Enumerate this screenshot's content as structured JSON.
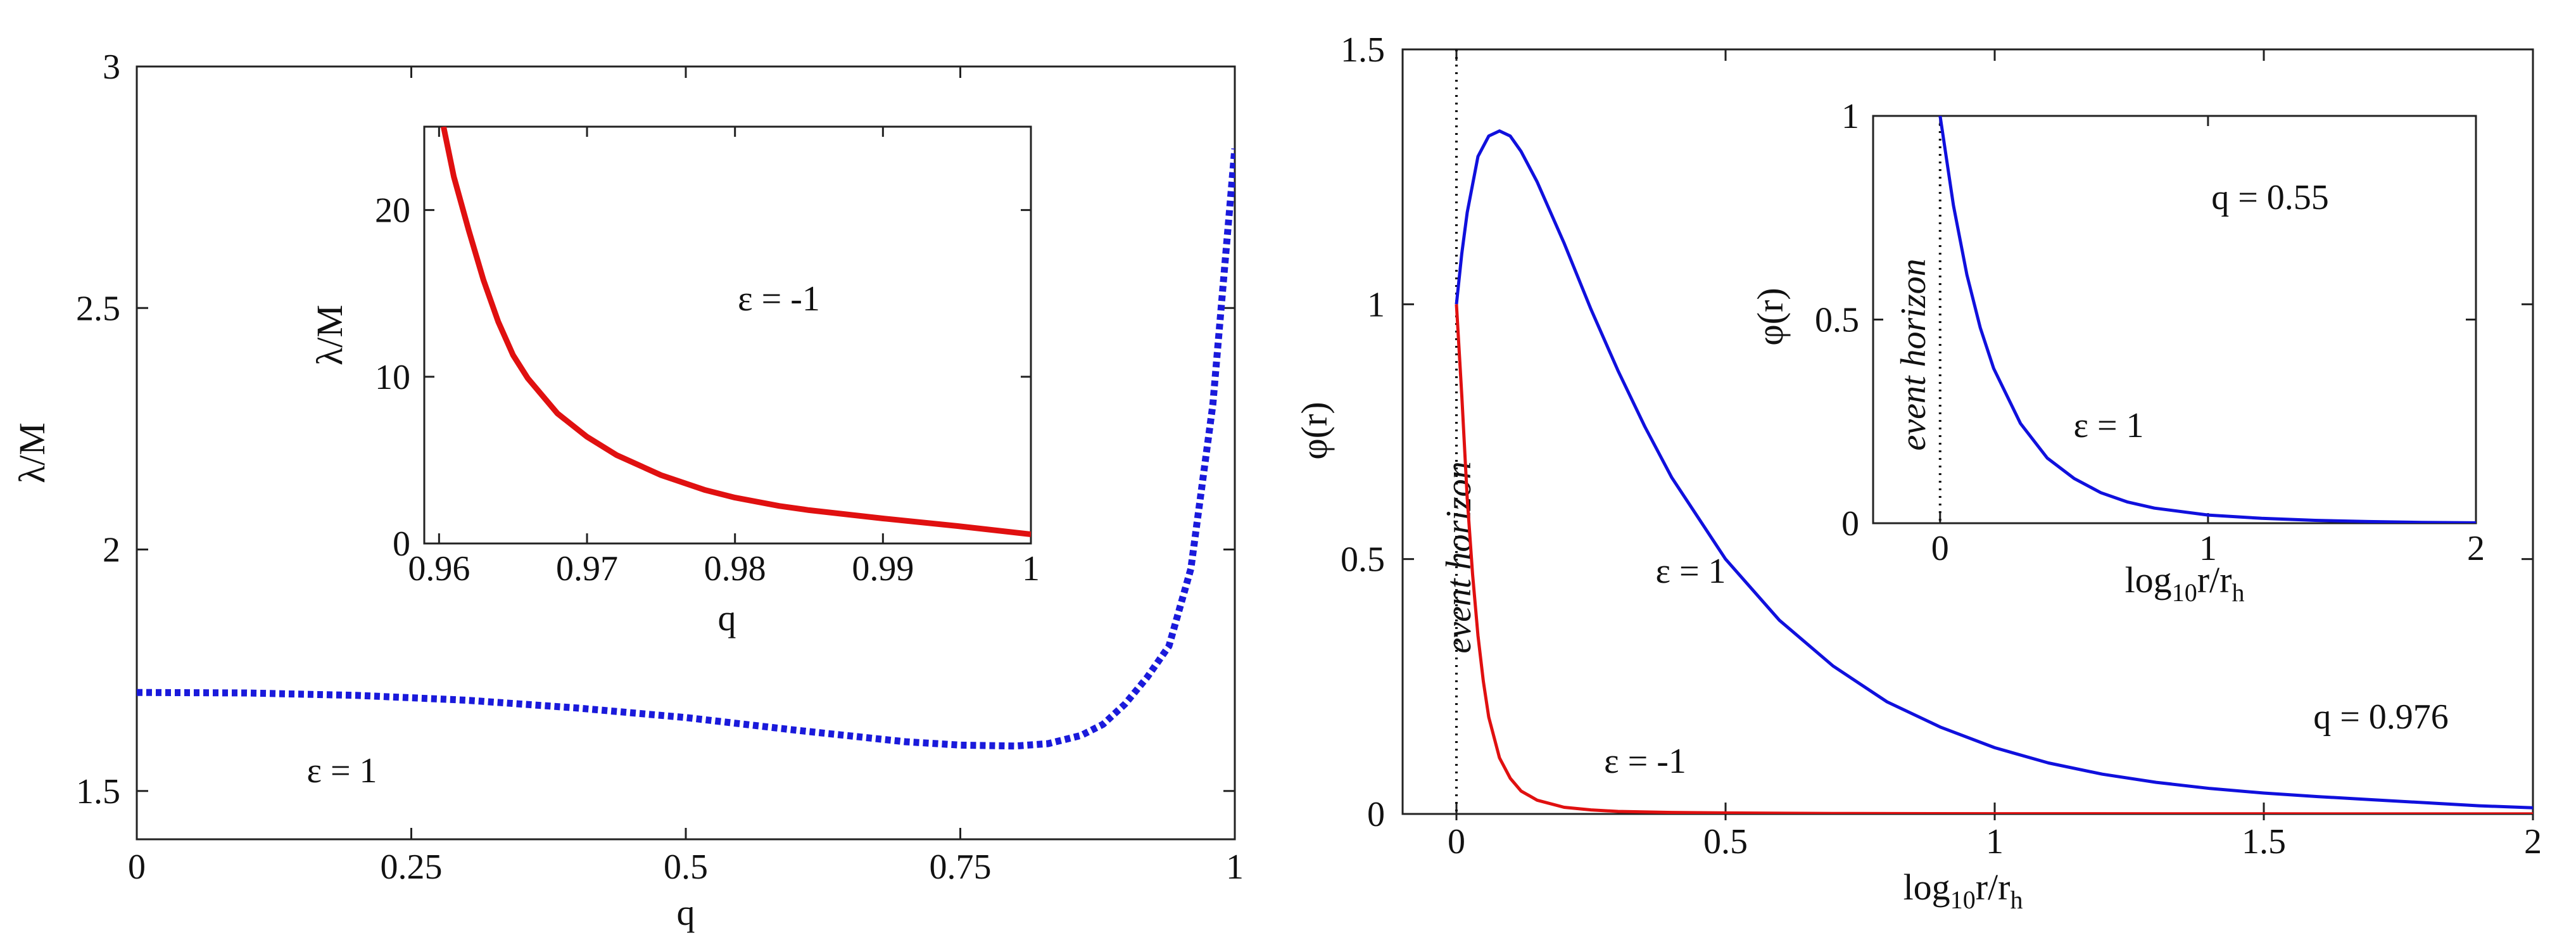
{
  "chart_data": [
    {
      "id": "left_main",
      "type": "line",
      "title": "",
      "xlabel": "q",
      "ylabel": "λ/M",
      "xlim": [
        0,
        1
      ],
      "ylim": [
        1.4,
        3.0
      ],
      "xticks": [
        0,
        0.25,
        0.5,
        0.75,
        1
      ],
      "xtick_labels": [
        "0",
        "0.25",
        "0.5",
        "0.75",
        "1"
      ],
      "yticks": [
        1.5,
        2,
        2.5,
        3
      ],
      "ytick_labels": [
        "1.5",
        "2",
        "2.5",
        "3"
      ],
      "series": [
        {
          "name": "ε = 1",
          "color": "#1a1adb",
          "style": "dotted",
          "x": [
            0,
            0.1,
            0.2,
            0.3,
            0.4,
            0.5,
            0.6,
            0.7,
            0.75,
            0.8,
            0.83,
            0.86,
            0.88,
            0.9,
            0.92,
            0.94,
            0.96,
            0.98,
            1.0
          ],
          "y": [
            1.704,
            1.703,
            1.698,
            1.688,
            1.672,
            1.652,
            1.626,
            1.602,
            1.595,
            1.593,
            1.598,
            1.615,
            1.638,
            1.68,
            1.735,
            1.8,
            1.96,
            2.3,
            2.83
          ]
        }
      ],
      "annotations": [
        "ε = 1"
      ]
    },
    {
      "id": "left_inset",
      "type": "line",
      "title": "",
      "xlabel": "q",
      "ylabel": "λ/M",
      "xlim": [
        0.959,
        1.0
      ],
      "ylim": [
        0,
        25
      ],
      "xticks": [
        0.96,
        0.97,
        0.98,
        0.99,
        1
      ],
      "xtick_labels": [
        "0.96",
        "0.97",
        "0.98",
        "0.99",
        "1"
      ],
      "yticks": [
        0,
        10,
        20
      ],
      "ytick_labels": [
        "0",
        "10",
        "20"
      ],
      "series": [
        {
          "name": "ε = -1",
          "color": "#e01010",
          "style": "solid",
          "x": [
            0.9603,
            0.961,
            0.962,
            0.963,
            0.964,
            0.965,
            0.966,
            0.968,
            0.97,
            0.972,
            0.975,
            0.978,
            0.98,
            0.983,
            0.985,
            0.99,
            0.995,
            1.0
          ],
          "y": [
            25.0,
            22.0,
            18.8,
            15.8,
            13.3,
            11.3,
            9.9,
            7.8,
            6.4,
            5.3,
            4.1,
            3.2,
            2.75,
            2.25,
            2.0,
            1.5,
            1.05,
            0.55
          ]
        }
      ],
      "annotations": [
        "ε = -1"
      ]
    },
    {
      "id": "right_main",
      "type": "line",
      "title": "",
      "xlabel": "log10 r/rh",
      "ylabel": "φ(r)",
      "xlim": [
        -0.1,
        2.0
      ],
      "ylim": [
        0,
        1.5
      ],
      "xticks": [
        0,
        0.5,
        1,
        1.5,
        2
      ],
      "xtick_labels": [
        "0",
        "0.5",
        "1",
        "1.5",
        "2"
      ],
      "yticks": [
        0,
        0.5,
        1,
        1.5
      ],
      "ytick_labels": [
        "0",
        "0.5",
        "1",
        "1.5"
      ],
      "vline": {
        "x": 0,
        "label": "event horizon"
      },
      "series": [
        {
          "name": "ε = 1",
          "color": "#1010dd",
          "style": "solid",
          "x": [
            0,
            0.01,
            0.02,
            0.04,
            0.06,
            0.08,
            0.1,
            0.12,
            0.15,
            0.2,
            0.25,
            0.3,
            0.35,
            0.4,
            0.5,
            0.6,
            0.7,
            0.8,
            0.9,
            1.0,
            1.1,
            1.2,
            1.3,
            1.4,
            1.5,
            1.6,
            1.7,
            1.8,
            1.9,
            2.0
          ],
          "y": [
            1.0,
            1.1,
            1.18,
            1.29,
            1.33,
            1.34,
            1.33,
            1.3,
            1.24,
            1.12,
            0.99,
            0.87,
            0.76,
            0.66,
            0.5,
            0.38,
            0.29,
            0.22,
            0.17,
            0.13,
            0.1,
            0.078,
            0.062,
            0.05,
            0.041,
            0.034,
            0.028,
            0.022,
            0.016,
            0.012
          ]
        },
        {
          "name": "ε = -1",
          "color": "#e01010",
          "style": "solid",
          "x": [
            0,
            0.01,
            0.02,
            0.03,
            0.04,
            0.05,
            0.06,
            0.08,
            0.1,
            0.12,
            0.15,
            0.2,
            0.25,
            0.3,
            0.4,
            0.5,
            0.7,
            1.0,
            1.5,
            2.0
          ],
          "y": [
            1.0,
            0.82,
            0.62,
            0.47,
            0.35,
            0.26,
            0.19,
            0.11,
            0.07,
            0.045,
            0.027,
            0.013,
            0.008,
            0.005,
            0.003,
            0.002,
            0.001,
            0.0005,
            0.0002,
            0.0001
          ]
        }
      ],
      "annotations": [
        "ε = 1",
        "ε = -1",
        "q = 0.976"
      ]
    },
    {
      "id": "right_inset",
      "type": "line",
      "title": "",
      "xlabel": "log10 r/rh",
      "ylabel": "φ(r)",
      "xlim": [
        -0.25,
        2.0
      ],
      "ylim": [
        0,
        1
      ],
      "xticks": [
        0,
        1,
        2
      ],
      "xtick_labels": [
        "0",
        "1",
        "2"
      ],
      "yticks": [
        0,
        0.5,
        1
      ],
      "ytick_labels": [
        "0",
        "0.5",
        "1"
      ],
      "vline": {
        "x": 0,
        "label": "event horizon"
      },
      "series": [
        {
          "name": "ε = 1",
          "color": "#1010dd",
          "style": "solid",
          "x": [
            0,
            0.05,
            0.1,
            0.15,
            0.2,
            0.3,
            0.4,
            0.5,
            0.6,
            0.7,
            0.8,
            1.0,
            1.2,
            1.4,
            1.6,
            1.8,
            2.0
          ],
          "y": [
            1.0,
            0.78,
            0.61,
            0.48,
            0.38,
            0.245,
            0.16,
            0.11,
            0.075,
            0.052,
            0.037,
            0.02,
            0.012,
            0.007,
            0.004,
            0.002,
            0.001
          ]
        }
      ],
      "annotations": [
        "ε = 1",
        "q = 0.55"
      ]
    }
  ]
}
